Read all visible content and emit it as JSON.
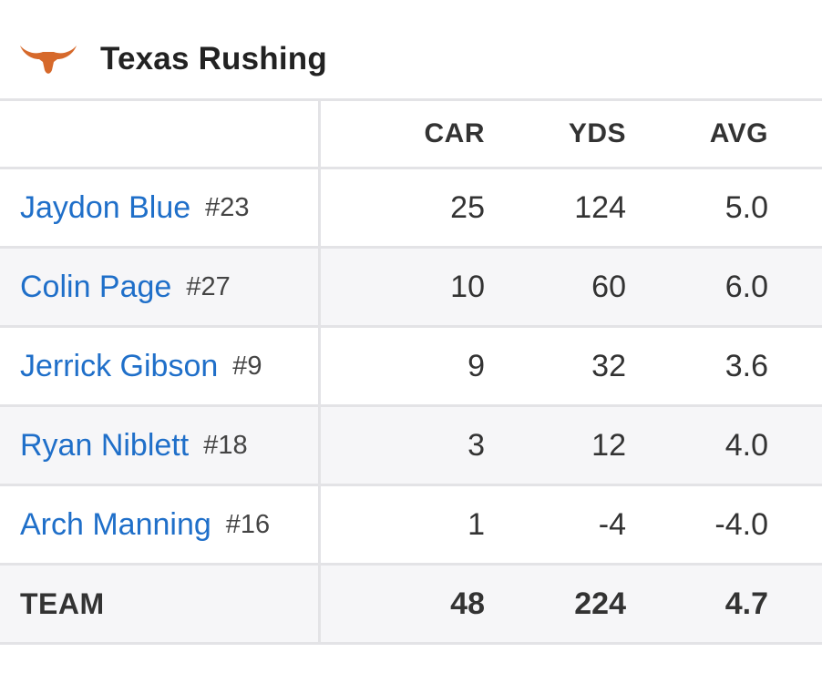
{
  "header": {
    "logo_icon": "longhorn-logo",
    "title": "Texas Rushing",
    "accent_color": "#d6692b"
  },
  "table": {
    "columns": [
      "CAR",
      "YDS",
      "AVG"
    ],
    "rows": [
      {
        "name": "Jaydon Blue",
        "number": "#23",
        "car": "25",
        "yds": "124",
        "avg": "5.0"
      },
      {
        "name": "Colin Page",
        "number": "#27",
        "car": "10",
        "yds": "60",
        "avg": "6.0"
      },
      {
        "name": "Jerrick Gibson",
        "number": "#9",
        "car": "9",
        "yds": "32",
        "avg": "3.6"
      },
      {
        "name": "Ryan Niblett",
        "number": "#18",
        "car": "3",
        "yds": "12",
        "avg": "4.0"
      },
      {
        "name": "Arch Manning",
        "number": "#16",
        "car": "1",
        "yds": "-4",
        "avg": "-4.0"
      }
    ],
    "team": {
      "label": "TEAM",
      "car": "48",
      "yds": "224",
      "avg": "4.7"
    }
  }
}
